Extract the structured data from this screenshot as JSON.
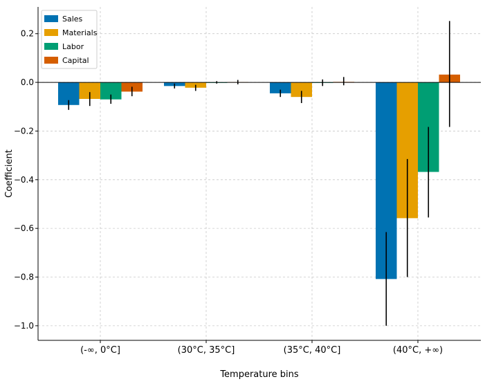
{
  "chart_data": {
    "type": "bar",
    "title": "",
    "xlabel": "Temperature bins",
    "ylabel": "Coefficient",
    "ylim": [
      -1.06,
      0.31
    ],
    "yticks": [
      "0.2",
      "0.0",
      "−0.2",
      "−0.4",
      "−0.6",
      "−0.8",
      "−1.0"
    ],
    "ytick_values": [
      0.2,
      0.0,
      -0.2,
      -0.4,
      -0.6,
      -0.8,
      -1.0
    ],
    "categories": [
      "(-∞, 0°C]",
      "(30°C, 35°C]",
      "(35°C, 40°C]",
      "(40°C, +∞)"
    ],
    "grid": true,
    "legend_position": "top-left",
    "series": [
      {
        "name": "Sales",
        "color": "#0072B2",
        "values": [
          -0.093,
          -0.015,
          -0.045,
          -0.808
        ],
        "err_low": [
          -0.113,
          -0.025,
          -0.06,
          -1.0
        ],
        "err_high": [
          -0.073,
          -0.005,
          -0.03,
          -0.615
        ]
      },
      {
        "name": "Materials",
        "color": "#E69F00",
        "values": [
          -0.068,
          -0.022,
          -0.06,
          -0.558
        ],
        "err_low": [
          -0.097,
          -0.035,
          -0.085,
          -0.8
        ],
        "err_high": [
          -0.04,
          -0.01,
          -0.035,
          -0.315
        ]
      },
      {
        "name": "Labor",
        "color": "#009E73",
        "values": [
          -0.07,
          -0.001,
          -0.001,
          -0.368
        ],
        "err_low": [
          -0.088,
          -0.005,
          -0.015,
          -0.555
        ],
        "err_high": [
          -0.05,
          0.005,
          0.012,
          -0.183
        ]
      },
      {
        "name": "Capital",
        "color": "#D55E00",
        "values": [
          -0.038,
          0.001,
          0.002,
          0.032
        ],
        "err_low": [
          -0.057,
          -0.008,
          -0.012,
          -0.183
        ],
        "err_high": [
          -0.018,
          0.01,
          0.022,
          0.252
        ]
      }
    ]
  }
}
